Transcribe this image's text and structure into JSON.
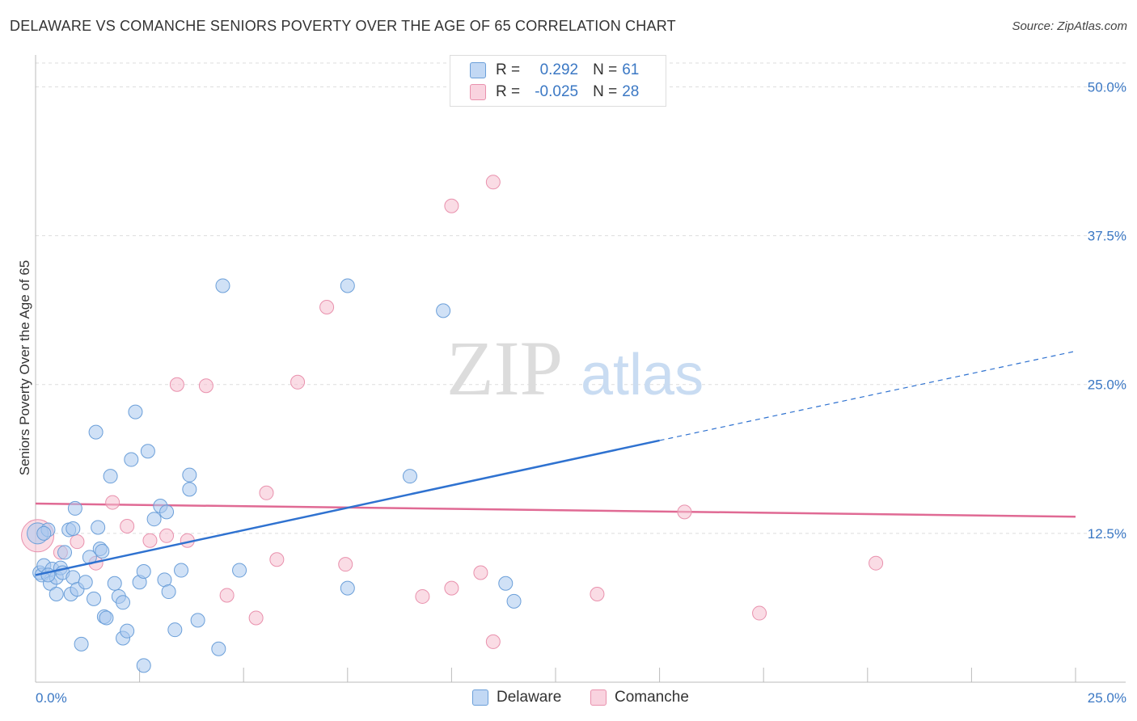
{
  "title": "DELAWARE VS COMANCHE SENIORS POVERTY OVER THE AGE OF 65 CORRELATION CHART",
  "source": "Source: ZipAtlas.com",
  "watermark": {
    "zip": "ZIP",
    "atlas": "atlas"
  },
  "legend": {
    "rows": [
      {
        "r_label": "R =",
        "r_value": "0.292",
        "n_label": "N =",
        "n_value": "61"
      },
      {
        "r_label": "R =",
        "r_value": "-0.025",
        "n_label": "N =",
        "n_value": "28"
      }
    ]
  },
  "colors": {
    "delaware_fill": "#a9c8ef",
    "delaware_stroke": "#6b9fd9",
    "delaware_line": "#2f72d0",
    "comanche_fill": "#f6bfd0",
    "comanche_stroke": "#e991ad",
    "comanche_line": "#e06a94",
    "axis_text": "#3b78c4",
    "grid": "#dddddd"
  },
  "chart_data": {
    "type": "scatter",
    "title": "DELAWARE VS COMANCHE SENIORS POVERTY OVER THE AGE OF 65 CORRELATION CHART",
    "xlabel": "",
    "ylabel": "Seniors Poverty Over the Age of 65",
    "xlim": [
      0,
      25
    ],
    "ylim": [
      0,
      52
    ],
    "x_tick_labels": [
      "0.0%",
      "25.0%"
    ],
    "y_ticks": [
      12.5,
      25.0,
      37.5,
      50.0
    ],
    "y_tick_labels": [
      "12.5%",
      "25.0%",
      "37.5%",
      "50.0%"
    ],
    "grid": true,
    "legend_placement": "top-center and bottom",
    "series": [
      {
        "name": "Delaware",
        "R": 0.292,
        "N": 61,
        "trend": {
          "x0": 0,
          "y0": 9.0,
          "x1": 15.0,
          "y1": 20.3,
          "dashed_to_x": 25,
          "dashed_to_y": 27.8
        },
        "points": [
          [
            0.05,
            12.5
          ],
          [
            0.1,
            9.2
          ],
          [
            0.15,
            9.0
          ],
          [
            0.2,
            9.8
          ],
          [
            0.3,
            12.8
          ],
          [
            0.35,
            8.3
          ],
          [
            0.4,
            9.5
          ],
          [
            0.5,
            7.4
          ],
          [
            0.5,
            8.8
          ],
          [
            0.6,
            9.6
          ],
          [
            0.65,
            9.2
          ],
          [
            0.7,
            10.9
          ],
          [
            0.8,
            12.8
          ],
          [
            0.85,
            7.4
          ],
          [
            0.9,
            12.9
          ],
          [
            0.9,
            8.8
          ],
          [
            0.95,
            14.6
          ],
          [
            1.0,
            7.8
          ],
          [
            1.1,
            3.2
          ],
          [
            1.2,
            8.4
          ],
          [
            1.3,
            10.5
          ],
          [
            1.4,
            7.0
          ],
          [
            1.45,
            21.0
          ],
          [
            1.5,
            13.0
          ],
          [
            1.55,
            11.2
          ],
          [
            1.6,
            11.0
          ],
          [
            1.65,
            5.5
          ],
          [
            1.7,
            5.4
          ],
          [
            1.8,
            17.3
          ],
          [
            1.9,
            8.3
          ],
          [
            2.0,
            7.2
          ],
          [
            2.1,
            6.7
          ],
          [
            2.1,
            3.7
          ],
          [
            2.2,
            4.3
          ],
          [
            2.3,
            18.7
          ],
          [
            2.4,
            22.7
          ],
          [
            2.5,
            8.4
          ],
          [
            2.6,
            9.3
          ],
          [
            2.6,
            1.4
          ],
          [
            2.7,
            19.4
          ],
          [
            2.85,
            13.7
          ],
          [
            3.0,
            14.8
          ],
          [
            3.1,
            8.6
          ],
          [
            3.15,
            14.3
          ],
          [
            3.2,
            7.6
          ],
          [
            3.35,
            4.4
          ],
          [
            3.5,
            9.4
          ],
          [
            3.7,
            17.4
          ],
          [
            3.7,
            16.2
          ],
          [
            3.9,
            5.2
          ],
          [
            4.4,
            2.8
          ],
          [
            4.5,
            33.3
          ],
          [
            4.9,
            9.4
          ],
          [
            7.5,
            33.3
          ],
          [
            7.5,
            7.9
          ],
          [
            9.0,
            17.3
          ],
          [
            9.8,
            31.2
          ],
          [
            11.3,
            8.3
          ],
          [
            11.5,
            6.8
          ],
          [
            0.2,
            12.5
          ],
          [
            0.3,
            9.0
          ]
        ]
      },
      {
        "name": "Comanche",
        "R": -0.025,
        "N": 28,
        "trend": {
          "x0": 0,
          "y0": 15.0,
          "x1": 25,
          "y1": 13.9
        },
        "points": [
          [
            0.05,
            12.3
          ],
          [
            0.6,
            10.9
          ],
          [
            1.0,
            11.8
          ],
          [
            1.45,
            10.0
          ],
          [
            1.85,
            15.1
          ],
          [
            2.2,
            13.1
          ],
          [
            2.75,
            11.9
          ],
          [
            3.15,
            12.3
          ],
          [
            3.65,
            11.9
          ],
          [
            3.4,
            25.0
          ],
          [
            4.1,
            24.9
          ],
          [
            4.6,
            7.3
          ],
          [
            5.3,
            5.4
          ],
          [
            5.55,
            15.9
          ],
          [
            5.8,
            10.3
          ],
          [
            6.3,
            25.2
          ],
          [
            7.0,
            31.5
          ],
          [
            7.45,
            9.9
          ],
          [
            9.3,
            7.2
          ],
          [
            10.0,
            7.9
          ],
          [
            10.0,
            40.0
          ],
          [
            10.7,
            9.2
          ],
          [
            11.0,
            3.4
          ],
          [
            11.0,
            42.0
          ],
          [
            13.5,
            7.4
          ],
          [
            15.6,
            14.3
          ],
          [
            17.4,
            5.8
          ],
          [
            20.2,
            10.0
          ]
        ]
      }
    ]
  },
  "bottom_legend": [
    {
      "label": "Delaware"
    },
    {
      "label": "Comanche"
    }
  ]
}
